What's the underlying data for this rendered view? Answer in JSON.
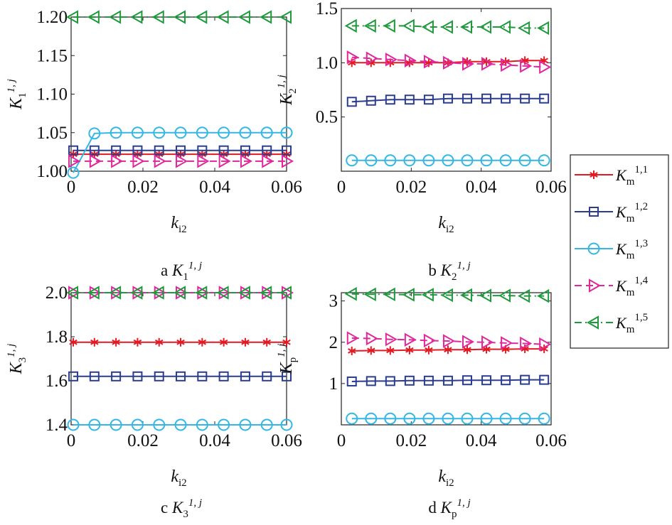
{
  "chart_data": [
    {
      "panel": "a",
      "type": "line",
      "caption_letter": "a",
      "ylabel": {
        "base": "K",
        "sub": "1",
        "sup": "1, j"
      },
      "xlabel": {
        "base": "k",
        "sub": "i2"
      },
      "xlim": [
        0,
        0.06
      ],
      "ylim": [
        1.0,
        1.2
      ],
      "xticks": [
        "0",
        "0.02",
        "0.04",
        "0.06"
      ],
      "yticks": [
        "1.00",
        "1.05",
        "1.10",
        "1.15",
        "1.20"
      ],
      "series": [
        {
          "key": "m11",
          "x": [
            0.0006,
            0.0065,
            0.0125,
            0.0185,
            0.0245,
            0.0305,
            0.0365,
            0.0425,
            0.0485,
            0.0545,
            0.06
          ],
          "y": [
            1.022,
            1.022,
            1.022,
            1.022,
            1.022,
            1.022,
            1.022,
            1.022,
            1.022,
            1.022,
            1.022
          ]
        },
        {
          "key": "m12",
          "x": [
            0.0006,
            0.0065,
            0.0125,
            0.0185,
            0.0245,
            0.0305,
            0.0365,
            0.0425,
            0.0485,
            0.0545,
            0.06
          ],
          "y": [
            1.027,
            1.027,
            1.027,
            1.027,
            1.027,
            1.027,
            1.027,
            1.027,
            1.027,
            1.027,
            1.027
          ]
        },
        {
          "key": "m13",
          "x": [
            0.0006,
            0.0065,
            0.0125,
            0.0185,
            0.0245,
            0.0305,
            0.0365,
            0.0425,
            0.0485,
            0.0545,
            0.06
          ],
          "y": [
            0.998,
            1.049,
            1.05,
            1.05,
            1.05,
            1.05,
            1.05,
            1.05,
            1.05,
            1.05,
            1.05
          ]
        },
        {
          "key": "m14",
          "x": [
            0.0006,
            0.0065,
            0.0125,
            0.0185,
            0.0245,
            0.0305,
            0.0365,
            0.0425,
            0.0485,
            0.0545,
            0.06
          ],
          "y": [
            1.013,
            1.013,
            1.013,
            1.013,
            1.013,
            1.013,
            1.013,
            1.013,
            1.013,
            1.013,
            1.013
          ]
        },
        {
          "key": "m15",
          "x": [
            0.0006,
            0.0065,
            0.0125,
            0.0185,
            0.0245,
            0.0305,
            0.0365,
            0.0425,
            0.0485,
            0.0545,
            0.06
          ],
          "y": [
            1.2,
            1.2,
            1.2,
            1.2,
            1.2,
            1.2,
            1.2,
            1.2,
            1.2,
            1.2,
            1.2
          ]
        }
      ]
    },
    {
      "panel": "b",
      "type": "line",
      "caption_letter": "b",
      "ylabel": {
        "base": "K",
        "sub": "2",
        "sup": "1, j"
      },
      "xlabel": {
        "base": "k",
        "sub": "i2"
      },
      "xlim": [
        0,
        0.06
      ],
      "ylim": [
        0.0,
        1.5
      ],
      "xticks": [
        "0",
        "0.02",
        "0.04",
        "0.06"
      ],
      "yticks": [
        "0.5",
        "1.0",
        "1.5"
      ],
      "series": [
        {
          "key": "m11",
          "x": [
            0.003,
            0.0085,
            0.014,
            0.0195,
            0.025,
            0.0305,
            0.036,
            0.0415,
            0.047,
            0.0525,
            0.058
          ],
          "y": [
            1.0,
            1.0,
            1.0,
            1.0,
            1.0,
            1.0,
            1.01,
            1.01,
            1.01,
            1.02,
            1.02
          ]
        },
        {
          "key": "m12",
          "x": [
            0.003,
            0.0085,
            0.014,
            0.0195,
            0.025,
            0.0305,
            0.036,
            0.0415,
            0.047,
            0.0525,
            0.058
          ],
          "y": [
            0.64,
            0.65,
            0.66,
            0.66,
            0.66,
            0.67,
            0.67,
            0.67,
            0.67,
            0.67,
            0.67
          ]
        },
        {
          "key": "m13",
          "x": [
            0.003,
            0.0085,
            0.014,
            0.0195,
            0.025,
            0.0305,
            0.036,
            0.0415,
            0.047,
            0.0525,
            0.058
          ],
          "y": [
            0.1,
            0.1,
            0.1,
            0.1,
            0.1,
            0.1,
            0.1,
            0.1,
            0.1,
            0.1,
            0.1
          ]
        },
        {
          "key": "m14",
          "x": [
            0.003,
            0.0085,
            0.014,
            0.0195,
            0.025,
            0.0305,
            0.036,
            0.0415,
            0.047,
            0.0525,
            0.058
          ],
          "y": [
            1.05,
            1.04,
            1.03,
            1.02,
            1.01,
            1.0,
            0.99,
            0.99,
            0.98,
            0.97,
            0.96
          ]
        },
        {
          "key": "m15",
          "x": [
            0.003,
            0.0085,
            0.014,
            0.0195,
            0.025,
            0.0305,
            0.036,
            0.0415,
            0.047,
            0.0525,
            0.058
          ],
          "y": [
            1.34,
            1.34,
            1.34,
            1.34,
            1.33,
            1.33,
            1.33,
            1.33,
            1.33,
            1.32,
            1.32
          ]
        }
      ]
    },
    {
      "panel": "c",
      "type": "line",
      "caption_letter": "c",
      "ylabel": {
        "base": "K",
        "sub": "3",
        "sup": "1, j"
      },
      "xlabel": {
        "base": "k",
        "sub": "i2"
      },
      "xlim": [
        0,
        0.06
      ],
      "ylim": [
        1.4,
        2.0
      ],
      "xticks": [
        "0",
        "0.02",
        "0.04",
        "0.06"
      ],
      "yticks": [
        "1.4",
        "1.6",
        "1.8",
        "2.0"
      ],
      "series": [
        {
          "key": "m11",
          "x": [
            0.0006,
            0.0065,
            0.0125,
            0.0185,
            0.0245,
            0.0305,
            0.0365,
            0.0425,
            0.0485,
            0.0545,
            0.06
          ],
          "y": [
            1.775,
            1.775,
            1.775,
            1.775,
            1.775,
            1.775,
            1.775,
            1.775,
            1.775,
            1.775,
            1.775
          ]
        },
        {
          "key": "m12",
          "x": [
            0.0006,
            0.0065,
            0.0125,
            0.0185,
            0.0245,
            0.0305,
            0.0365,
            0.0425,
            0.0485,
            0.0545,
            0.06
          ],
          "y": [
            1.62,
            1.62,
            1.62,
            1.62,
            1.62,
            1.62,
            1.62,
            1.62,
            1.62,
            1.62,
            1.62
          ]
        },
        {
          "key": "m13",
          "x": [
            0.0006,
            0.0065,
            0.0125,
            0.0185,
            0.0245,
            0.0305,
            0.0365,
            0.0425,
            0.0485,
            0.0545,
            0.06
          ],
          "y": [
            1.4,
            1.4,
            1.4,
            1.4,
            1.4,
            1.4,
            1.4,
            1.4,
            1.4,
            1.4,
            1.4
          ]
        },
        {
          "key": "m14",
          "x": [
            0.0006,
            0.0065,
            0.0125,
            0.0185,
            0.0245,
            0.0305,
            0.0365,
            0.0425,
            0.0485,
            0.0545,
            0.06
          ],
          "y": [
            2.0,
            2.0,
            2.0,
            2.0,
            2.0,
            2.0,
            2.0,
            2.0,
            2.0,
            2.0,
            2.0
          ]
        },
        {
          "key": "m15",
          "x": [
            0.0006,
            0.0065,
            0.0125,
            0.0185,
            0.0245,
            0.0305,
            0.0365,
            0.0425,
            0.0485,
            0.0545,
            0.06
          ],
          "y": [
            2.0,
            2.0,
            2.0,
            2.0,
            2.0,
            2.0,
            2.0,
            2.0,
            2.0,
            2.0,
            2.0
          ]
        }
      ]
    },
    {
      "panel": "d",
      "type": "line",
      "caption_letter": "d",
      "ylabel": {
        "base": "K",
        "sub": "p",
        "sup": "1, j"
      },
      "xlabel": {
        "base": "k",
        "sub": "i2"
      },
      "xlim": [
        0,
        0.06
      ],
      "ylim": [
        0.0,
        3.2
      ],
      "xticks": [
        "0",
        "0.02",
        "0.04",
        "0.06"
      ],
      "yticks": [
        "1",
        "2",
        "3"
      ],
      "series": [
        {
          "key": "m11",
          "x": [
            0.003,
            0.0085,
            0.014,
            0.0195,
            0.025,
            0.0305,
            0.036,
            0.0415,
            0.047,
            0.0525,
            0.058
          ],
          "y": [
            1.79,
            1.8,
            1.8,
            1.81,
            1.81,
            1.82,
            1.82,
            1.83,
            1.83,
            1.84,
            1.84
          ]
        },
        {
          "key": "m12",
          "x": [
            0.003,
            0.0085,
            0.014,
            0.0195,
            0.025,
            0.0305,
            0.036,
            0.0415,
            0.047,
            0.0525,
            0.058
          ],
          "y": [
            1.05,
            1.06,
            1.06,
            1.07,
            1.07,
            1.07,
            1.08,
            1.08,
            1.08,
            1.09,
            1.09
          ]
        },
        {
          "key": "m13",
          "x": [
            0.003,
            0.0085,
            0.014,
            0.0195,
            0.025,
            0.0305,
            0.036,
            0.0415,
            0.047,
            0.0525,
            0.058
          ],
          "y": [
            0.15,
            0.15,
            0.15,
            0.15,
            0.15,
            0.15,
            0.15,
            0.15,
            0.15,
            0.15,
            0.15
          ]
        },
        {
          "key": "m14",
          "x": [
            0.003,
            0.0085,
            0.014,
            0.0195,
            0.025,
            0.0305,
            0.036,
            0.0415,
            0.047,
            0.0525,
            0.058
          ],
          "y": [
            2.1,
            2.09,
            2.07,
            2.06,
            2.04,
            2.03,
            2.01,
            2.0,
            1.98,
            1.97,
            1.95
          ]
        },
        {
          "key": "m15",
          "x": [
            0.003,
            0.0085,
            0.014,
            0.0195,
            0.025,
            0.0305,
            0.036,
            0.0415,
            0.047,
            0.0525,
            0.058
          ],
          "y": [
            3.17,
            3.16,
            3.16,
            3.15,
            3.15,
            3.14,
            3.14,
            3.13,
            3.13,
            3.12,
            3.12
          ]
        }
      ]
    }
  ],
  "series_styles": {
    "m11": {
      "color": "#e31a23",
      "marker": "asterisk",
      "dash": "none"
    },
    "m12": {
      "color": "#2b3d8f",
      "marker": "square",
      "dash": "none"
    },
    "m13": {
      "color": "#34b6e6",
      "marker": "circle",
      "dash": "none"
    },
    "m14": {
      "color": "#e0289c",
      "marker": "triangle-right",
      "dash": "dashed"
    },
    "m15": {
      "color": "#1e9a3c",
      "marker": "triangle-left",
      "dash": "dash-dot"
    }
  },
  "legend": {
    "placement": "right",
    "entries": [
      {
        "key": "m11",
        "base": "K",
        "sub": "m",
        "sup": "1,1"
      },
      {
        "key": "m12",
        "base": "K",
        "sub": "m",
        "sup": "1,2"
      },
      {
        "key": "m13",
        "base": "K",
        "sub": "m",
        "sup": "1,3"
      },
      {
        "key": "m14",
        "base": "K",
        "sub": "m",
        "sup": "1,4"
      },
      {
        "key": "m15",
        "base": "K",
        "sub": "m",
        "sup": "1,5"
      }
    ]
  }
}
